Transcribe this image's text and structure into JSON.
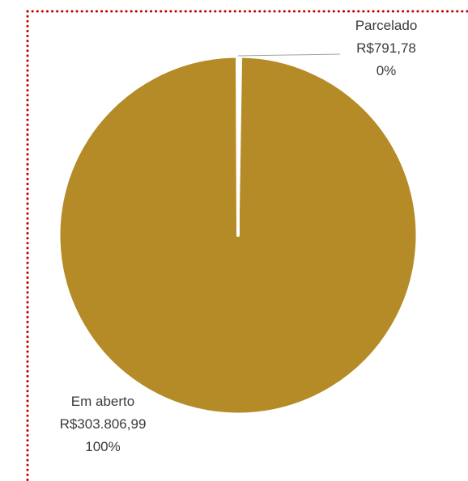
{
  "chart_data": {
    "type": "pie",
    "title": "",
    "slices": [
      {
        "label": "Parcelado",
        "value": 791.78,
        "value_text": "R$791,78",
        "percent_text": "0%",
        "color": "#ffffff"
      },
      {
        "label": "Em aberto",
        "value": 303806.99,
        "value_text": "R$303.806,99",
        "percent_text": "100%",
        "color": "#b58b28"
      }
    ],
    "legend": "none"
  },
  "colors": {
    "border": "#c00000",
    "leader_line": "#a0a0a0",
    "slice_separator": "#ffffff"
  }
}
